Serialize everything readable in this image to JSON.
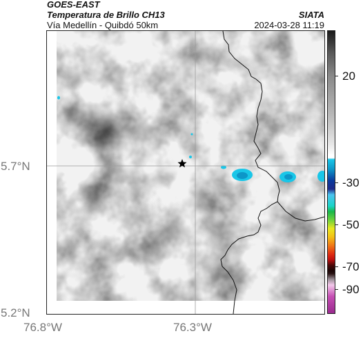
{
  "header": {
    "title": "GOES-EAST",
    "subtitle": "Temperatura de Brillo CH13",
    "organization": "SIATA",
    "route": "Vía Medellín - Quibdó 50km",
    "timestamp": "2024-03-28 11:19"
  },
  "axes": {
    "y_ticks": [
      "5.7°N",
      "5.2°N"
    ],
    "x_ticks": [
      "76.8°W",
      "76.3°W"
    ]
  },
  "colorbar": {
    "ticks": [
      "20",
      "-30",
      "-50",
      "-70",
      "-90"
    ]
  },
  "map": {
    "marker_icon": "star-icon",
    "colors": {
      "cold_cloud": "#19c6e8",
      "cold_cloud_core": "#0d96c8",
      "border_line": "#111111",
      "grid_line": "#9a9a9a"
    }
  }
}
